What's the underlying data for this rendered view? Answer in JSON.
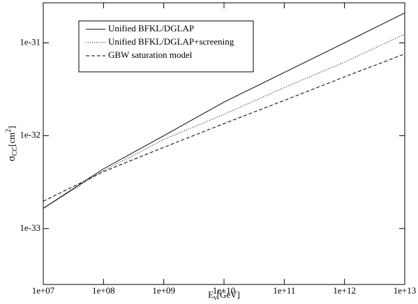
{
  "chart_data": {
    "type": "line",
    "xlabel": {
      "base": "E",
      "sub": "ν",
      "unit": "[GeV]"
    },
    "ylabel": {
      "base": "σ",
      "sub": "CC",
      "unit": "[cm",
      "sup": "2",
      "end": "]"
    },
    "xscale": "log",
    "yscale": "log",
    "xlim": [
      10000000.0,
      10000000000000.0
    ],
    "ylim": [
      2.5e-34,
      2.7e-31
    ],
    "xticks": [
      {
        "value": 10000000.0,
        "label": "1e+07"
      },
      {
        "value": 100000000.0,
        "label": "1e+08"
      },
      {
        "value": 1000000000.0,
        "label": "1e+09"
      },
      {
        "value": 10000000000.0,
        "label": "1e+10"
      },
      {
        "value": 100000000000.0,
        "label": "1e+11"
      },
      {
        "value": 1000000000000.0,
        "label": "1e+12"
      },
      {
        "value": 10000000000000.0,
        "label": "1e+13"
      }
    ],
    "yticks": [
      {
        "value": 1e-33,
        "label": "1e-33"
      },
      {
        "value": 1e-32,
        "label": "1e-32"
      },
      {
        "value": 1e-31,
        "label": "1e-31"
      }
    ],
    "grid": false,
    "legend": "upper left",
    "x": [
      10000000.0,
      100000000.0,
      1000000000.0,
      10000000000.0,
      100000000000.0,
      1000000000000.0,
      10000000000000.0
    ],
    "series": [
      {
        "name": "Unified BFKL/DGLAP",
        "color": "#000000",
        "dash": "solid",
        "values": [
          1.65e-33,
          4.4e-33,
          1e-32,
          2.3e-32,
          4.8e-32,
          1e-31,
          2.1e-31
        ]
      },
      {
        "name": "Unified BFKL/DGLAP+screening",
        "color": "#000000",
        "dash": "dotted",
        "values": [
          1.65e-33,
          4.2e-33,
          9.1e-33,
          1.7e-32,
          3.3e-32,
          6.2e-32,
          1.24e-31
        ]
      },
      {
        "name": "GBW saturation model",
        "color": "#000000",
        "dash": "dashed",
        "values": [
          1.97e-33,
          4.1e-33,
          7.5e-33,
          1.35e-32,
          2.4e-32,
          4.3e-32,
          7.6e-32
        ]
      }
    ]
  }
}
